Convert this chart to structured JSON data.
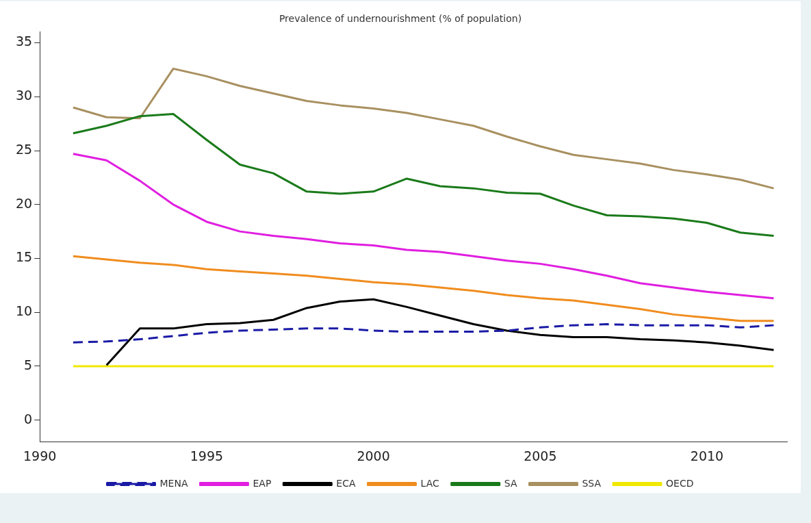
{
  "chart_data": {
    "type": "line",
    "title": "Prevalence of undernourishment (% of population)",
    "x": [
      1991,
      1992,
      1993,
      1994,
      1995,
      1996,
      1997,
      1998,
      1999,
      2000,
      2001,
      2002,
      2003,
      2004,
      2005,
      2006,
      2007,
      2008,
      2009,
      2010,
      2011,
      2012
    ],
    "xlim": [
      1990,
      2012.4
    ],
    "xticks": [
      1990,
      1995,
      2000,
      2005,
      2010
    ],
    "ylim": [
      -2,
      36
    ],
    "yticks": [
      0,
      5,
      10,
      15,
      20,
      25,
      30,
      35
    ],
    "grid": false,
    "legend": "bottom",
    "marker": "none",
    "series": [
      {
        "name": "MENA",
        "color": "#1a1aa6",
        "line_style": "dashed",
        "values": [
          7.2,
          7.3,
          7.5,
          7.8,
          8.1,
          8.3,
          8.4,
          8.5,
          8.5,
          8.3,
          8.2,
          8.2,
          8.2,
          8.3,
          8.6,
          8.8,
          8.9,
          8.8,
          8.8,
          8.8,
          8.6,
          8.8
        ]
      },
      {
        "name": "EAP",
        "color": "#e01ee0",
        "values": [
          24.7,
          24.1,
          22.2,
          20.0,
          18.4,
          17.5,
          17.1,
          16.8,
          16.4,
          16.2,
          15.8,
          15.6,
          15.2,
          14.8,
          14.5,
          14.0,
          13.4,
          12.7,
          12.3,
          11.9,
          11.6,
          11.3
        ]
      },
      {
        "name": "ECA",
        "color": "#000000",
        "values": [
          null,
          5.1,
          8.5,
          8.5,
          8.9,
          9.0,
          9.3,
          10.4,
          11.0,
          11.2,
          10.5,
          9.7,
          8.9,
          8.3,
          7.9,
          7.7,
          7.7,
          7.5,
          7.4,
          7.2,
          6.9,
          6.5
        ]
      },
      {
        "name": "LAC",
        "color": "#f08c1e",
        "values": [
          15.2,
          14.9,
          14.6,
          14.4,
          14.0,
          13.8,
          13.6,
          13.4,
          13.1,
          12.8,
          12.6,
          12.3,
          12.0,
          11.6,
          11.3,
          11.1,
          10.7,
          10.3,
          9.8,
          9.5,
          9.2,
          9.2
        ]
      },
      {
        "name": "SA",
        "color": "#1a7a1a",
        "values": [
          26.6,
          27.3,
          28.2,
          28.4,
          26.0,
          23.7,
          22.9,
          21.2,
          21.0,
          21.2,
          22.4,
          21.7,
          21.5,
          21.1,
          21.0,
          19.9,
          19.0,
          18.9,
          18.7,
          18.3,
          17.4,
          17.1
        ]
      },
      {
        "name": "SSA",
        "color": "#a89060",
        "values": [
          29.0,
          28.1,
          28.0,
          32.6,
          31.9,
          31.0,
          30.3,
          29.6,
          29.2,
          28.9,
          28.5,
          27.9,
          27.3,
          26.3,
          25.4,
          24.6,
          24.2,
          23.8,
          23.2,
          22.8,
          22.3,
          21.5
        ]
      },
      {
        "name": "OECD",
        "color": "#f0e800",
        "values": [
          5,
          5,
          5,
          5,
          5,
          5,
          5,
          5,
          5,
          5,
          5,
          5,
          5,
          5,
          5,
          5,
          5,
          5,
          5,
          5,
          5,
          5
        ]
      }
    ]
  }
}
